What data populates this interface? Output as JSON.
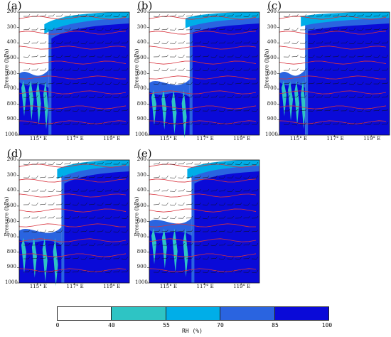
{
  "figure": {
    "y_axis_label": "Pressure (hPa)",
    "x_tick_labels": [
      "115° E",
      "117° E",
      "119° E"
    ],
    "y_tick_labels": [
      "200",
      "300",
      "400",
      "500",
      "600",
      "700",
      "800",
      "900",
      "1000"
    ],
    "panels": [
      {
        "id": "a",
        "letter": "(a)",
        "moist_boundary_lon": 115.6,
        "boundary_top": 280
      },
      {
        "id": "b",
        "letter": "(b)",
        "moist_boundary_lon": 116.2,
        "boundary_top": 240
      },
      {
        "id": "c",
        "letter": "(c)",
        "moist_boundary_lon": 115.4,
        "boundary_top": 230
      },
      {
        "id": "d",
        "letter": "(d)",
        "moist_boundary_lon": 116.3,
        "boundary_top": 260
      },
      {
        "id": "e",
        "letter": "(e)",
        "moist_boundary_lon": 116.3,
        "boundary_top": 260
      }
    ]
  },
  "colorbar": {
    "title": "RH (%)",
    "ticks": [
      "0",
      "40",
      "55",
      "70",
      "85",
      "100"
    ],
    "colors": [
      "#ffffff",
      "#2ec4c4",
      "#00aee8",
      "#2a64e0",
      "#0a0ad8"
    ]
  },
  "chart_data": {
    "type": "heatmap",
    "title": "",
    "xlabel": "",
    "ylabel": "Pressure (hPa)",
    "xlim": [
      114.0,
      120.0
    ],
    "ylim": [
      1000,
      200
    ],
    "x_ticks": [
      "115° E",
      "117° E",
      "119° E"
    ],
    "y_ticks": [
      200,
      300,
      400,
      500,
      600,
      700,
      800,
      900,
      1000
    ],
    "legend": {
      "title": "RH (%)",
      "levels": [
        0,
        40,
        55,
        70,
        85,
        100
      ]
    },
    "series": [
      {
        "panel": "(a)",
        "moist_region_west_edge_lon": 115.6,
        "dry_layer_hpa": [
          200,
          500
        ]
      },
      {
        "panel": "(b)",
        "moist_region_west_edge_lon": 116.2,
        "dry_layer_hpa": [
          200,
          650
        ]
      },
      {
        "panel": "(c)",
        "moist_region_west_edge_lon": 115.4,
        "dry_layer_hpa": [
          200,
          600
        ]
      },
      {
        "panel": "(d)",
        "moist_region_west_edge_lon": 116.3,
        "dry_layer_hpa": [
          200,
          650
        ]
      },
      {
        "panel": "(e)",
        "moist_region_west_edge_lon": 116.3,
        "dry_layer_hpa": [
          200,
          650
        ]
      }
    ]
  }
}
